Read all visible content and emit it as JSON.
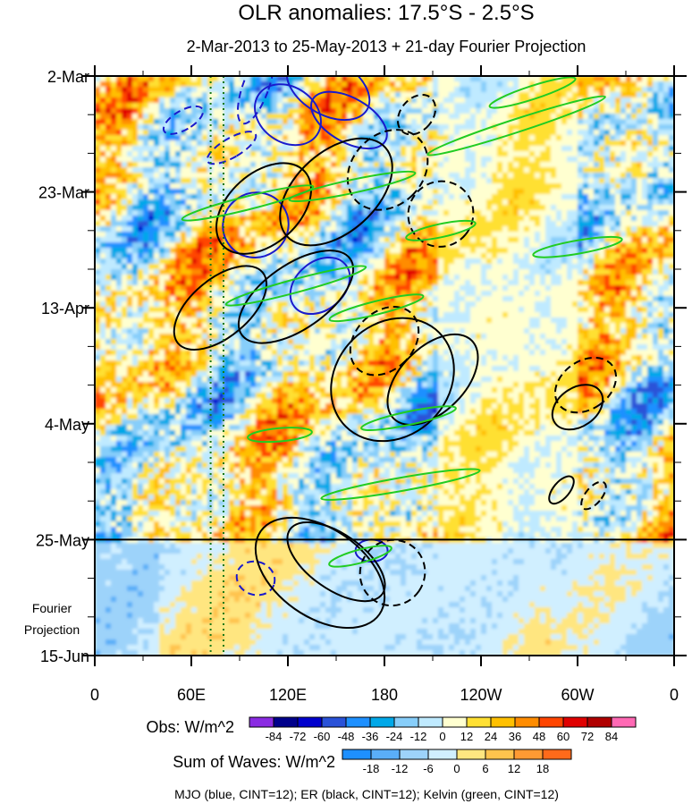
{
  "chart_data": {
    "type": "heatmap",
    "title": "OLR anomalies: 17.5°S - 2.5°S",
    "subtitle": "2-Mar-2013 to 25-May-2013 + 21-day Fourier Projection",
    "xlabel": "",
    "ylabel": "",
    "x_ticks": [
      "0",
      "60E",
      "120E",
      "180",
      "120W",
      "60W",
      "0"
    ],
    "x_tick_lon": [
      0,
      60,
      120,
      180,
      240,
      300,
      360
    ],
    "xlim": [
      0,
      360
    ],
    "y_ticks": [
      "2-Mar",
      "23-Mar",
      "13-Apr",
      "4-May",
      "25-May",
      "15-Jun"
    ],
    "y_tick_day": [
      0,
      21,
      42,
      63,
      84,
      105
    ],
    "ylim": [
      0,
      105
    ],
    "projection_label": [
      "Fourier",
      "Projection"
    ],
    "projection_start_day": 84,
    "reference_lines_lon": [
      72,
      80
    ],
    "obs_colorbar": {
      "label": "Obs: W/m^2",
      "levels": [
        "-84",
        "-72",
        "-60",
        "-48",
        "-36",
        "-24",
        "-12",
        "0",
        "12",
        "24",
        "36",
        "48",
        "60",
        "72",
        "84"
      ],
      "colors": [
        "#8a2be2",
        "#00008b",
        "#0000cd",
        "#2a52d8",
        "#1e90ff",
        "#00a8e8",
        "#87cefa",
        "#bfeaff",
        "#ffffd0",
        "#ffe033",
        "#ffc000",
        "#ff8c00",
        "#ff4500",
        "#e00000",
        "#b00000",
        "#ff69b4"
      ]
    },
    "waves_colorbar": {
      "label": "Sum of Waves: W/m^2",
      "levels": [
        "-18",
        "-12",
        "-6",
        "0",
        "6",
        "12",
        "18"
      ],
      "colors": [
        "#1e90ff",
        "#5aaef8",
        "#9dd3fa",
        "#d0efff",
        "#ffe680",
        "#ffc34d",
        "#ff9a33",
        "#ff6a1a"
      ]
    },
    "footnote": "MJO (blue, CINT=12); ER (black, CINT=12); Kelvin (green, CINT=12)",
    "wave_contours": [
      {
        "wave": "MJO",
        "color": "#1a1acc",
        "ellipses": [
          {
            "lon": 100,
            "day": 2,
            "rlon": 8,
            "rday": 7,
            "ang": 20,
            "dashed": true
          },
          {
            "lon": 120,
            "day": 7,
            "rlon": 22,
            "rday": 5,
            "ang": 35,
            "dashed": false
          },
          {
            "lon": 145,
            "day": 2,
            "rlon": 28,
            "rday": 5,
            "ang": 30,
            "dashed": false
          },
          {
            "lon": 158,
            "day": 8,
            "rlon": 26,
            "rday": 4,
            "ang": 30,
            "dashed": false
          },
          {
            "lon": 100,
            "day": 27,
            "rlon": 20,
            "rday": 6,
            "ang": 55,
            "dashed": false
          },
          {
            "lon": 140,
            "day": 38,
            "rlon": 15,
            "rday": 6,
            "ang": 50,
            "dashed": false
          },
          {
            "lon": 55,
            "day": 8,
            "rlon": 6,
            "rday": 4,
            "ang": 60,
            "dashed": true
          },
          {
            "lon": 85,
            "day": 13,
            "rlon": 6,
            "rday": 5,
            "ang": 60,
            "dashed": true
          },
          {
            "lon": 100,
            "day": 91,
            "rlon": 12,
            "rday": 3,
            "ang": 20,
            "dashed": true
          },
          {
            "lon": 172,
            "day": 86,
            "rlon": 10,
            "rday": 2,
            "ang": 0,
            "dashed": false
          }
        ]
      },
      {
        "wave": "ER",
        "color": "#000000",
        "ellipses": [
          {
            "lon": 105,
            "day": 24,
            "rlon": 22,
            "rday": 10,
            "ang": 48,
            "dashed": false
          },
          {
            "lon": 150,
            "day": 21,
            "rlon": 25,
            "rday": 12,
            "ang": 48,
            "dashed": false
          },
          {
            "lon": 182,
            "day": 17,
            "rlon": 22,
            "rday": 8,
            "ang": 45,
            "dashed": true
          },
          {
            "lon": 78,
            "day": 42,
            "rlon": 18,
            "rday": 10,
            "ang": 50,
            "dashed": false
          },
          {
            "lon": 125,
            "day": 40,
            "rlon": 20,
            "rday": 12,
            "ang": 55,
            "dashed": false
          },
          {
            "lon": 185,
            "day": 55,
            "rlon": 35,
            "rday": 12,
            "ang": 45,
            "dashed": false
          },
          {
            "lon": 210,
            "day": 55,
            "rlon": 20,
            "rday": 10,
            "ang": 45,
            "dashed": false
          },
          {
            "lon": 140,
            "day": 90,
            "rlon": 45,
            "rday": 8,
            "ang": 35,
            "dashed": false
          },
          {
            "lon": 150,
            "day": 88,
            "rlon": 35,
            "rday": 5,
            "ang": 35,
            "dashed": false
          },
          {
            "lon": 215,
            "day": 25,
            "rlon": 20,
            "rday": 6,
            "ang": 40,
            "dashed": true
          },
          {
            "lon": 180,
            "day": 48,
            "rlon": 18,
            "rday": 7,
            "ang": 45,
            "dashed": true
          },
          {
            "lon": 305,
            "day": 56,
            "rlon": 15,
            "rday": 6,
            "ang": 55,
            "dashed": true
          },
          {
            "lon": 300,
            "day": 60,
            "rlon": 12,
            "rday": 5,
            "ang": 55,
            "dashed": false
          },
          {
            "lon": 290,
            "day": 75,
            "rlon": 5,
            "rday": 3,
            "ang": 40,
            "dashed": false
          },
          {
            "lon": 310,
            "day": 76,
            "rlon": 5,
            "rday": 3,
            "ang": 40,
            "dashed": true
          },
          {
            "lon": 185,
            "day": 90,
            "rlon": 20,
            "rday": 6,
            "ang": 35,
            "dashed": true
          },
          {
            "lon": 200,
            "day": 7,
            "rlon": 10,
            "rday": 4,
            "ang": 40,
            "dashed": true
          }
        ]
      },
      {
        "wave": "Kelvin",
        "color": "#22cc22",
        "ellipses": [
          {
            "lon": 272,
            "day": 3,
            "rlon": 28,
            "rday": 1.2,
            "ang": -18,
            "dashed": false
          },
          {
            "lon": 262,
            "day": 9,
            "rlon": 58,
            "rday": 1.2,
            "ang": -18,
            "dashed": false
          },
          {
            "lon": 215,
            "day": 28,
            "rlon": 22,
            "rday": 1.2,
            "ang": -12,
            "dashed": false
          },
          {
            "lon": 95,
            "day": 23,
            "rlon": 42,
            "rday": 1.2,
            "ang": -14,
            "dashed": false
          },
          {
            "lon": 125,
            "day": 38,
            "rlon": 45,
            "rday": 1.2,
            "ang": -15,
            "dashed": false
          },
          {
            "lon": 175,
            "day": 42,
            "rlon": 30,
            "rday": 1.2,
            "ang": -14,
            "dashed": false
          },
          {
            "lon": 195,
            "day": 62,
            "rlon": 30,
            "rday": 1.2,
            "ang": -12,
            "dashed": false
          },
          {
            "lon": 190,
            "day": 74,
            "rlon": 50,
            "rday": 1.2,
            "ang": -10,
            "dashed": false
          },
          {
            "lon": 300,
            "day": 31,
            "rlon": 28,
            "rday": 1.2,
            "ang": -10,
            "dashed": false
          },
          {
            "lon": 160,
            "day": 20,
            "rlon": 40,
            "rday": 1.2,
            "ang": -12,
            "dashed": false
          },
          {
            "lon": 115,
            "day": 65,
            "rlon": 20,
            "rday": 1.2,
            "ang": -5,
            "dashed": false
          },
          {
            "lon": 165,
            "day": 87,
            "rlon": 20,
            "rday": 1.2,
            "ang": -15,
            "dashed": false
          }
        ]
      }
    ]
  }
}
